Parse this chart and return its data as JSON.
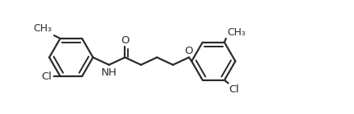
{
  "bg_color": "#ffffff",
  "line_color": "#2a2a2a",
  "line_width": 1.6,
  "text_color": "#2a2a2a",
  "font_size": 9.5,
  "font_size_label": 9.0,
  "figsize": [
    4.4,
    1.42
  ],
  "dpi": 100,
  "xlim": [
    -0.1,
    4.5
  ],
  "ylim": [
    -0.05,
    1.1
  ]
}
